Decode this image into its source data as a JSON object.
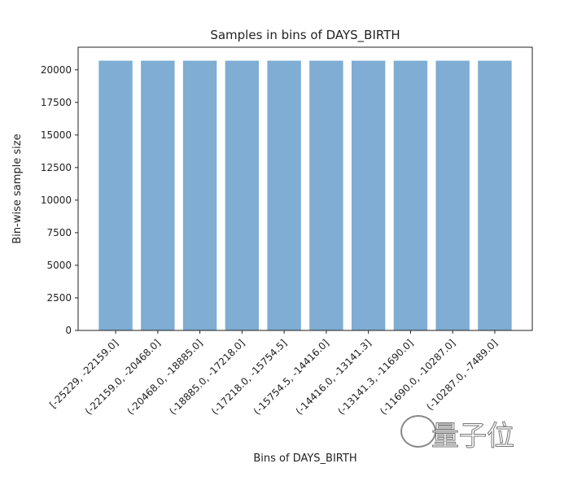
{
  "chart_data": {
    "type": "bar",
    "title": "Samples in bins of DAYS_BIRTH",
    "xlabel": "Bins of DAYS_BIRTH",
    "ylabel": "Bin-wise sample size",
    "categories": [
      "[-25229, -22159.0]",
      "(-22159.0, -20468.0]",
      "(-20468.0, -18885.0]",
      "(-18885.0, -17218.0]",
      "(-17218.0, -15754.5]",
      "(-15754.5, -14416.0]",
      "(-14416.0, -13141.3]",
      "(-13141.3, -11690.0]",
      "(-11690.0, -10287.0]",
      "(-10287.0, -7489.0]"
    ],
    "values": [
      20700,
      20700,
      20700,
      20700,
      20700,
      20700,
      20700,
      20700,
      20700,
      20700
    ],
    "ylim": [
      0,
      21735
    ],
    "yticks": [
      0,
      2500,
      5000,
      7500,
      10000,
      12500,
      15000,
      17500,
      20000
    ],
    "grid": false,
    "bar_color": "#7fadd3"
  },
  "watermark": "量子位"
}
